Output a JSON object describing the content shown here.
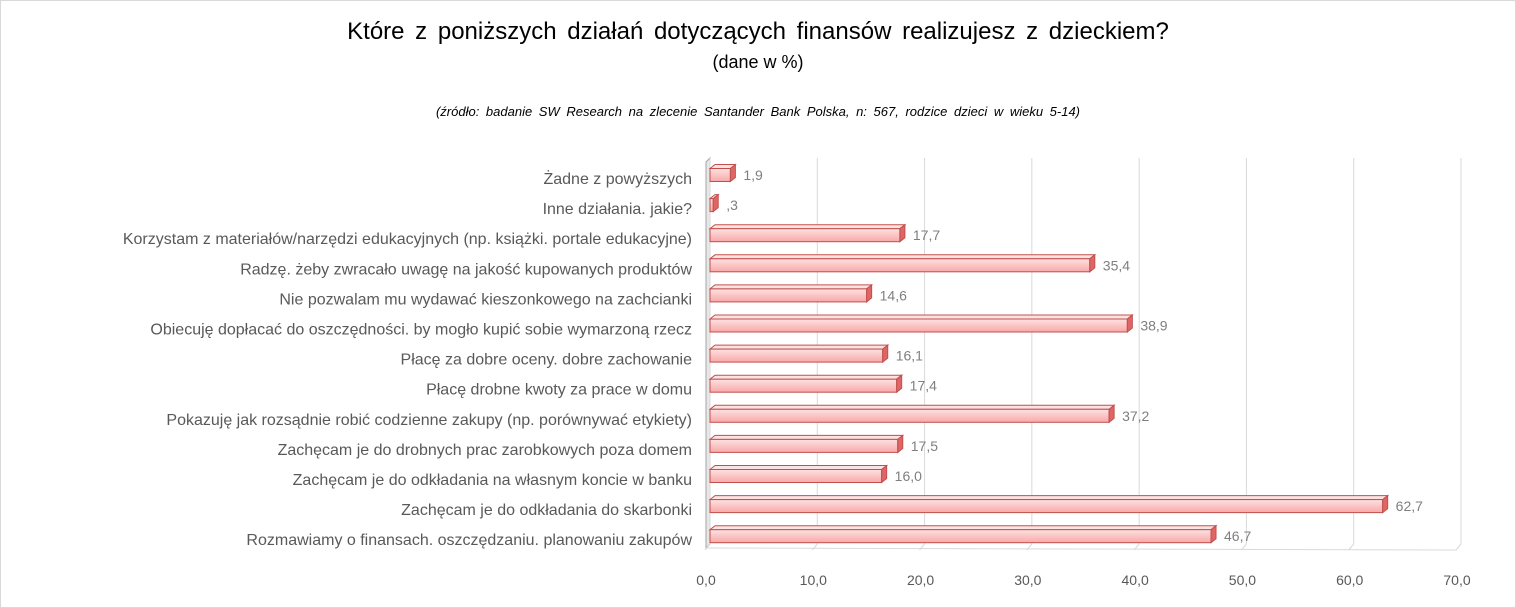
{
  "colors": {
    "bar_fill_light": "#fde2e2",
    "bar_fill_mid": "#f9a8a8",
    "bar_stroke": "#c0504d",
    "bar_end": "#e06666",
    "grid": "#d9d9d9",
    "axis_wall": "#a6a6a6"
  },
  "chart_data": {
    "type": "bar",
    "orientation": "horizontal",
    "title": "Które z poniższych działań dotyczących finansów realizujesz z dzieckiem?",
    "subtitle": "(dane w %)",
    "source_note": "(źródło: badanie SW Research na zlecenie Santander Bank Polska, n: 567, rodzice dzieci w wieku 5-14)",
    "categories": [
      "Żadne z powyższych",
      "Inne działania. jakie?",
      "Korzystam z materiałów/narzędzi edukacyjnych (np. książki. portale edukacyjne)",
      "Radzę. żeby zwracało uwagę na jakość kupowanych produktów",
      "Nie pozwalam mu wydawać kieszonkowego na zachcianki",
      "Obiecuję dopłacać do oszczędności. by mogło kupić sobie wymarzoną rzecz",
      "Płacę za dobre oceny. dobre zachowanie",
      "Płacę drobne kwoty za prace w domu",
      "Pokazuję jak rozsądnie robić codzienne zakupy (np. porównywać etykiety)",
      "Zachęcam je do drobnych prac zarobkowych poza domem",
      "Zachęcam je do odkładania na własnym koncie w banku",
      "Zachęcam je do odkładania do skarbonki",
      "Rozmawiamy o finansach. oszczędzaniu. planowaniu zakupów"
    ],
    "values": [
      1.9,
      0.3,
      17.7,
      35.4,
      14.6,
      38.9,
      16.1,
      17.4,
      37.2,
      17.5,
      16.0,
      62.7,
      46.7
    ],
    "value_labels": [
      "1,9",
      ",3",
      "17,7",
      "35,4",
      "14,6",
      "38,9",
      "16,1",
      "17,4",
      "37,2",
      "17,5",
      "16,0",
      "62,7",
      "46,7"
    ],
    "xlim": [
      0,
      70
    ],
    "xticks": [
      0,
      10,
      20,
      30,
      40,
      50,
      60,
      70
    ],
    "xtick_labels": [
      "0,0",
      "10,0",
      "20,0",
      "30,0",
      "40,0",
      "50,0",
      "60,0",
      "70,0"
    ],
    "grid": true,
    "legend": "none"
  }
}
